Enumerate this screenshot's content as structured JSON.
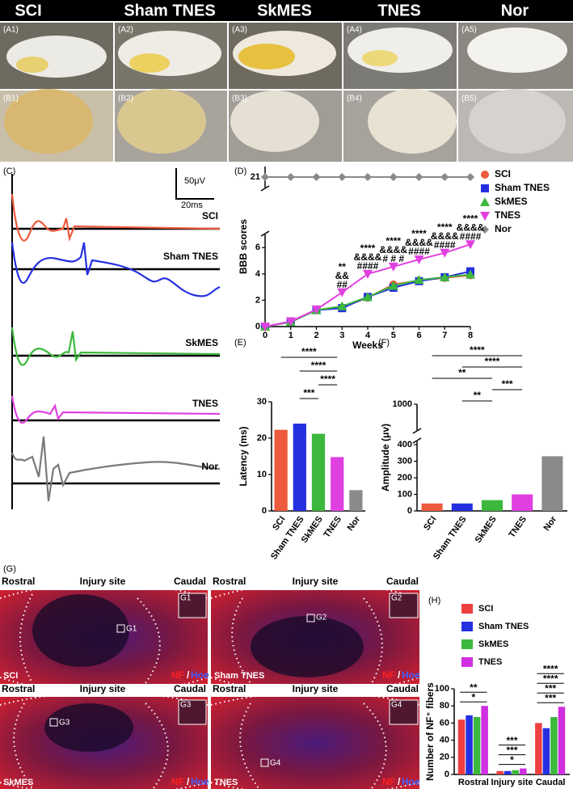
{
  "header": {
    "columns": [
      "SCI",
      "Sham TNES",
      "SkMES",
      "TNES",
      "Nor"
    ]
  },
  "photos": {
    "row_a": [
      "(A1)",
      "(A2)",
      "(A3)",
      "(A4)",
      "(A5)"
    ],
    "row_b": [
      "(B1)",
      "(B2)",
      "(B3)",
      "(B4)",
      "(B5)"
    ]
  },
  "panel_c": {
    "label": "(C)",
    "scale_y": "50μV",
    "scale_x": "20ms",
    "traces": [
      "SCI",
      "Sham TNES",
      "SkMES",
      "TNES",
      "Nor"
    ]
  },
  "panel_g": {
    "label": "(G)",
    "regions": [
      "Rostral",
      "Injury site",
      "Caudal"
    ],
    "images": [
      "SCI",
      "Sham TNES",
      "SkMES",
      "TNES"
    ],
    "insets": [
      "G1",
      "G2",
      "G3",
      "G4"
    ],
    "stain_nf": "NF",
    "stain_sep": "/",
    "stain_hoe": "Hoe"
  },
  "chart_data": [
    {
      "type": "line",
      "label": "(D)",
      "xlabel": "Weeks",
      "ylabel": "BBB  scores",
      "x": [
        0,
        1,
        2,
        3,
        4,
        5,
        6,
        7,
        8
      ],
      "xlim": [
        0,
        8
      ],
      "xticks": [
        0,
        1,
        2,
        3,
        4,
        5,
        6,
        7,
        8
      ],
      "ylim_segments": [
        [
          0,
          7
        ],
        [
          20,
          22
        ]
      ],
      "yticks": [
        0,
        2,
        4,
        6,
        21
      ],
      "legend": "upper right",
      "series": [
        {
          "name": "SCI",
          "color": "#ee5a3c",
          "marker": "circle",
          "values": [
            0,
            0.35,
            1.25,
            1.45,
            2.2,
            3.2,
            3.5,
            3.7,
            3.9
          ]
        },
        {
          "name": "Sham TNES",
          "color": "#2430e0",
          "marker": "square",
          "values": [
            0,
            0.35,
            1.25,
            1.4,
            2.25,
            2.95,
            3.45,
            3.75,
            4.2
          ]
        },
        {
          "name": "SkMES",
          "color": "#3cb83c",
          "marker": "triangle-up",
          "values": [
            0,
            0.35,
            1.25,
            1.55,
            2.25,
            3.1,
            3.55,
            3.75,
            3.95
          ]
        },
        {
          "name": "TNES",
          "color": "#e040e0",
          "marker": "triangle-down",
          "values": [
            0,
            0.4,
            1.3,
            2.6,
            4.0,
            4.55,
            5.1,
            5.6,
            6.25
          ]
        },
        {
          "name": "Nor",
          "color": "#8a8a8a",
          "marker": "diamond",
          "values": [
            21,
            21,
            21,
            21,
            21,
            21,
            21,
            21,
            21
          ]
        }
      ],
      "annotations": [
        {
          "x": 3,
          "lines": [
            "**",
            "&&",
            "##"
          ]
        },
        {
          "x": 4,
          "lines": [
            "****",
            "&&&&",
            "####"
          ]
        },
        {
          "x": 5,
          "lines": [
            "****",
            "&&&&",
            "# # #"
          ]
        },
        {
          "x": 6,
          "lines": [
            "****",
            "&&&&",
            "####"
          ]
        },
        {
          "x": 7,
          "lines": [
            "****",
            "&&&&",
            "####"
          ]
        },
        {
          "x": 8,
          "lines": [
            "****",
            "&&&&",
            "####"
          ]
        }
      ]
    },
    {
      "type": "bar",
      "label": "(E)",
      "ylabel": "Latency (ms)",
      "categories": [
        "SCI",
        "Sham TNES",
        "SkMES",
        "TNES",
        "Nor"
      ],
      "values": [
        22.3,
        24,
        21.2,
        14.8,
        5.7
      ],
      "colors": [
        "#ee5a3c",
        "#2430e0",
        "#3cb83c",
        "#e040e0",
        "#8a8a8a"
      ],
      "ylim": [
        0,
        30
      ],
      "yticks": [
        0,
        10,
        20,
        30
      ],
      "comparisons": [
        {
          "from": 0,
          "to": 3,
          "label": "****"
        },
        {
          "from": 1,
          "to": 3,
          "label": "****"
        },
        {
          "from": 2,
          "to": 3,
          "label": "****"
        },
        {
          "from": 1,
          "to": 2,
          "label": "***"
        }
      ]
    },
    {
      "type": "bar",
      "label": "(F)",
      "ylabel": "Amplitude (μv)",
      "categories": [
        "SCI",
        "Sham TNES",
        "SkMES",
        "TNES",
        "Nor"
      ],
      "values": [
        45,
        45,
        65,
        100,
        330
      ],
      "colors": [
        "#ee5a3c",
        "#2430e0",
        "#3cb83c",
        "#e040e0",
        "#8a8a8a"
      ],
      "ylim_segments": [
        [
          0,
          420
        ],
        [
          420,
          1000
        ]
      ],
      "yticks": [
        0,
        100,
        200,
        300,
        400,
        1000
      ],
      "comparisons": [
        {
          "from": 0,
          "to": 3,
          "label": "****"
        },
        {
          "from": 1,
          "to": 3,
          "label": "****"
        },
        {
          "from": 0,
          "to": 2,
          "label": "**"
        },
        {
          "from": 2,
          "to": 3,
          "label": "***"
        },
        {
          "from": 1,
          "to": 2,
          "label": "**"
        }
      ]
    },
    {
      "type": "bar",
      "label": "(H)",
      "ylabel": "Number of NF⁺ fibers",
      "legend": "upper right",
      "categories": [
        "Rostral",
        "Injury site",
        "Caudal"
      ],
      "series": [
        {
          "name": "SCI",
          "color": "#ee4040",
          "values": [
            64,
            4,
            60
          ]
        },
        {
          "name": "Sham TNES",
          "color": "#2430e0",
          "values": [
            69,
            4,
            54
          ]
        },
        {
          "name": "SkMES",
          "color": "#3cb83c",
          "values": [
            67,
            5,
            67
          ]
        },
        {
          "name": "TNES",
          "color": "#d030e0",
          "values": [
            80,
            7,
            79
          ]
        }
      ],
      "ylim": [
        0,
        100
      ],
      "yticks": [
        0,
        20,
        40,
        60,
        80,
        100
      ],
      "annotations": [
        {
          "category": 0,
          "labels": [
            "**",
            "*"
          ]
        },
        {
          "category": 1,
          "labels": [
            "***",
            "***",
            "*"
          ]
        },
        {
          "category": 2,
          "labels": [
            "****",
            "****",
            "***",
            "***"
          ]
        }
      ]
    }
  ]
}
